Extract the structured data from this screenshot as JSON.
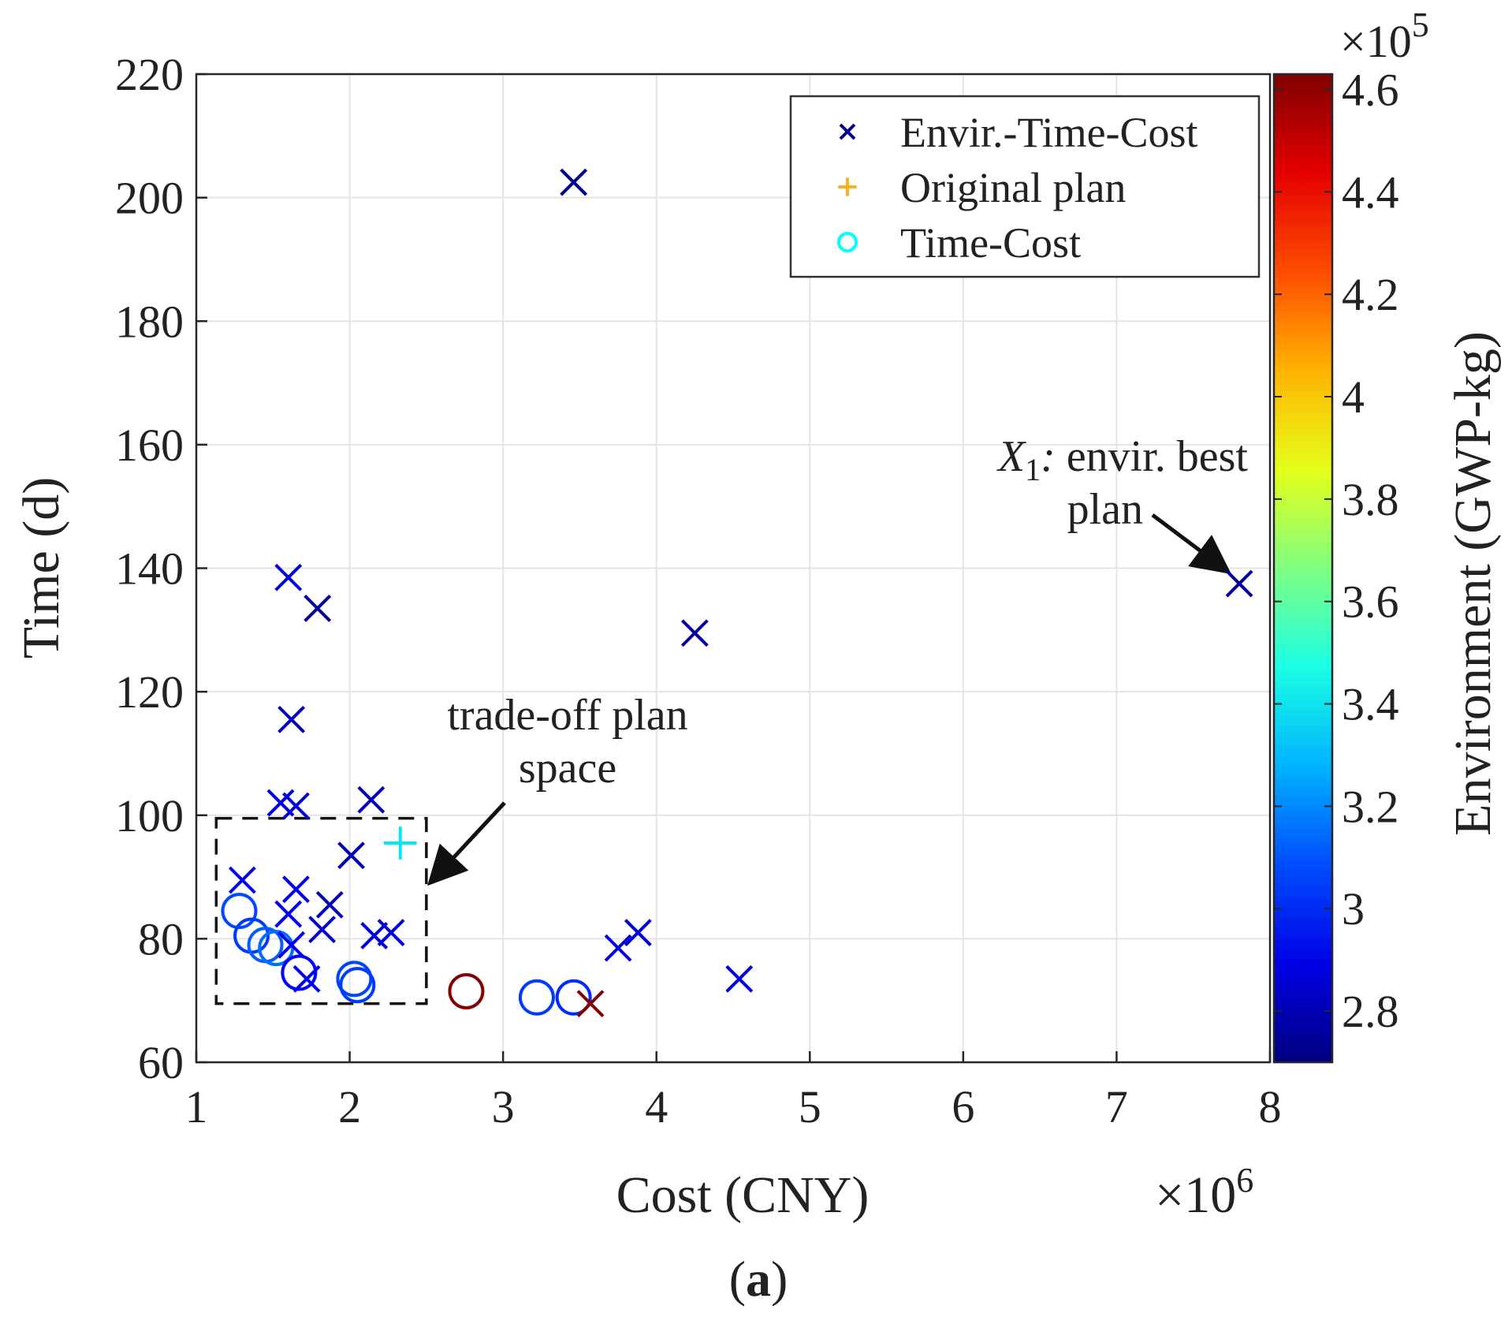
{
  "chart_data": {
    "type": "scatter",
    "title": "",
    "caption_open": "(",
    "caption_letter": "a",
    "caption_close": ")",
    "xlabel": "Cost (CNY)",
    "ylabel": "Time (d)",
    "x_multiplier": "×10",
    "x_exponent": "6",
    "xlim": [
      1,
      8
    ],
    "ylim": [
      60,
      220
    ],
    "xticks": [
      1,
      2,
      3,
      4,
      5,
      6,
      7,
      8
    ],
    "yticks": [
      60,
      80,
      100,
      120,
      140,
      160,
      180,
      200,
      220
    ],
    "grid": true,
    "legend_position": "top-right",
    "colorbar": {
      "label": "Environment (GWP-kg)",
      "multiplier": "×10",
      "exponent": "5",
      "min": 2.7,
      "max": 4.63,
      "ticks": [
        2.8,
        3,
        3.2,
        3.4,
        3.6,
        3.8,
        4,
        4.2,
        4.4,
        4.6
      ],
      "tick_labels": [
        "2.8",
        "3",
        "3.2",
        "3.4",
        "3.6",
        "3.8",
        "4",
        "4.2",
        "4.4",
        "4.6"
      ],
      "colormap": "jet"
    },
    "series": [
      {
        "name": "Envir.-Time-Cost",
        "marker": "x",
        "legend_color": "#00008b",
        "points": [
          {
            "x": 3.46,
            "y": 202.5,
            "env": 2.74
          },
          {
            "x": 1.79,
            "y": 133.5,
            "env": 2.76
          },
          {
            "x": 4.25,
            "y": 129.5,
            "env": 2.76
          },
          {
            "x": 7.8,
            "y": 137.5,
            "env": 2.74
          },
          {
            "x": 1.6,
            "y": 138.5,
            "env": 2.88
          },
          {
            "x": 1.62,
            "y": 115.5,
            "env": 2.81
          },
          {
            "x": 2.14,
            "y": 102.5,
            "env": 2.81
          },
          {
            "x": 1.55,
            "y": 102.0,
            "env": 2.89
          },
          {
            "x": 1.65,
            "y": 101.5,
            "env": 2.87
          },
          {
            "x": 2.01,
            "y": 93.5,
            "env": 2.8
          },
          {
            "x": 1.87,
            "y": 85.5,
            "env": 2.82
          },
          {
            "x": 1.82,
            "y": 81.5,
            "env": 2.85
          },
          {
            "x": 1.3,
            "y": 89.5,
            "env": 2.91
          },
          {
            "x": 1.65,
            "y": 88.0,
            "env": 2.9
          },
          {
            "x": 1.6,
            "y": 84.0,
            "env": 2.92
          },
          {
            "x": 2.16,
            "y": 80.5,
            "env": 2.89
          },
          {
            "x": 2.27,
            "y": 81.0,
            "env": 2.88
          },
          {
            "x": 1.62,
            "y": 79.0,
            "env": 2.93
          },
          {
            "x": 1.72,
            "y": 73.5,
            "env": 2.92
          },
          {
            "x": 3.75,
            "y": 78.5,
            "env": 2.88
          },
          {
            "x": 3.88,
            "y": 81.0,
            "env": 2.87
          },
          {
            "x": 4.54,
            "y": 73.5,
            "env": 2.89
          },
          {
            "x": 3.57,
            "y": 69.5,
            "env": 4.62
          }
        ]
      },
      {
        "name": "Original plan",
        "marker": "+",
        "legend_color": "#f5b323",
        "points": [
          {
            "x": 2.33,
            "y": 95.5,
            "env": 3.38
          }
        ]
      },
      {
        "name": "Time-Cost",
        "marker": "o",
        "legend_color": "#00ffff",
        "points": [
          {
            "x": 1.28,
            "y": 84.5,
            "env": 3.08
          },
          {
            "x": 1.36,
            "y": 80.5,
            "env": 3.05
          },
          {
            "x": 1.45,
            "y": 79.0,
            "env": 3.12
          },
          {
            "x": 1.52,
            "y": 78.5,
            "env": 3.15
          },
          {
            "x": 1.67,
            "y": 74.5,
            "env": 2.95
          },
          {
            "x": 2.03,
            "y": 73.5,
            "env": 3.07
          },
          {
            "x": 2.05,
            "y": 72.5,
            "env": 3.05
          },
          {
            "x": 2.76,
            "y": 71.5,
            "env": 4.62
          },
          {
            "x": 3.22,
            "y": 70.5,
            "env": 3.05
          },
          {
            "x": 3.46,
            "y": 70.5,
            "env": 3.02
          }
        ]
      }
    ],
    "annotations": [
      {
        "id": "best",
        "symbol": "X",
        "subscript": "1",
        "colon": ":",
        "line1_rest": " envir. best",
        "line2": "plan",
        "target_x": 7.8,
        "target_y": 137.5
      },
      {
        "id": "tradeoff",
        "line1": "trade-off plan",
        "line2": "space",
        "box_x": [
          1.13,
          2.5
        ],
        "box_y": [
          69.5,
          99.5
        ]
      }
    ]
  }
}
